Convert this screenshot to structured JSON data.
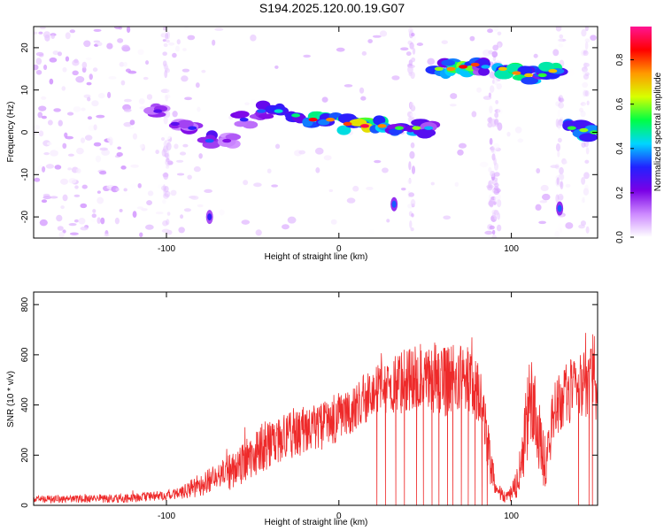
{
  "title": "S194.2025.120.00.19.G07",
  "colors": {
    "snr_line": "#ee2a2a",
    "colormap": [
      "#ffffff",
      "#cc88ff",
      "#7a00e6",
      "#2222ff",
      "#00d5ff",
      "#00ff44",
      "#d8ff00",
      "#ff9900",
      "#ff0000",
      "#ff1493"
    ]
  },
  "chart_data": [
    {
      "type": "heatmap",
      "name": "spectrogram",
      "xlabel": "Height of straight line (km)",
      "ylabel": "Frequency (Hz)",
      "xlim": [
        -177,
        150
      ],
      "ylim": [
        -25,
        25
      ],
      "x_ticks": [
        -100,
        0,
        100
      ],
      "x_tick_labels": [
        "-100",
        "0",
        "100"
      ],
      "y_ticks": [
        -20,
        -10,
        0,
        10,
        20
      ],
      "y_tick_labels": [
        "-20",
        "-10",
        "0",
        "10",
        "20"
      ],
      "colorbar": {
        "label": "Normalized spectral amplitude",
        "range": [
          0,
          0.95
        ],
        "ticks": [
          0,
          0.2,
          0.4,
          0.6,
          0.8
        ],
        "tick_labels": [
          "0.0",
          "0.2",
          "0.4",
          "0.6",
          "0.8"
        ]
      },
      "ridge": [
        {
          "x": -105,
          "y": 5,
          "amplitude": 0.25
        },
        {
          "x": -95,
          "y": 2,
          "amplitude": 0.25
        },
        {
          "x": -85,
          "y": 1,
          "amplitude": 0.3
        },
        {
          "x": -75,
          "y": -2,
          "amplitude": 0.35
        },
        {
          "x": -65,
          "y": -2,
          "amplitude": 0.2
        },
        {
          "x": -55,
          "y": 3,
          "amplitude": 0.3
        },
        {
          "x": -45,
          "y": 5,
          "amplitude": 0.35
        },
        {
          "x": -35,
          "y": 5,
          "amplitude": 0.45
        },
        {
          "x": -25,
          "y": 4,
          "amplitude": 0.5
        },
        {
          "x": -15,
          "y": 3,
          "amplitude": 0.85
        },
        {
          "x": -5,
          "y": 3,
          "amplitude": 0.75
        },
        {
          "x": 5,
          "y": 2,
          "amplitude": 0.8
        },
        {
          "x": 15,
          "y": 1.5,
          "amplitude": 0.9
        },
        {
          "x": 25,
          "y": 1.5,
          "amplitude": 0.75
        },
        {
          "x": 35,
          "y": 1,
          "amplitude": 0.55
        },
        {
          "x": 45,
          "y": 1,
          "amplitude": 0.6
        },
        {
          "x": 52,
          "y": 1,
          "amplitude": 0.4
        },
        {
          "x": 58,
          "y": 15,
          "amplitude": 0.6
        },
        {
          "x": 65,
          "y": 15,
          "amplitude": 0.75
        },
        {
          "x": 72,
          "y": 15.5,
          "amplitude": 0.85
        },
        {
          "x": 79,
          "y": 16,
          "amplitude": 0.8
        },
        {
          "x": 85,
          "y": 15.5,
          "amplitude": 0.4
        },
        {
          "x": 95,
          "y": 15,
          "amplitude": 0.7
        },
        {
          "x": 103,
          "y": 14,
          "amplitude": 0.75
        },
        {
          "x": 110,
          "y": 13.5,
          "amplitude": 0.7
        },
        {
          "x": 118,
          "y": 13.5,
          "amplitude": 0.55
        },
        {
          "x": 124,
          "y": 14.5,
          "amplitude": 0.7
        },
        {
          "x": 135,
          "y": 1,
          "amplitude": 0.55
        },
        {
          "x": 142,
          "y": 0.5,
          "amplitude": 0.6
        },
        {
          "x": 148,
          "y": 0,
          "amplitude": 0.55
        }
      ],
      "blobs": [
        {
          "x": -75,
          "y": -20,
          "amplitude": 0.3
        },
        {
          "x": 32,
          "y": -17,
          "amplitude": 0.35
        },
        {
          "x": 128,
          "y": -18,
          "amplitude": 0.35
        }
      ]
    },
    {
      "type": "line",
      "name": "snr",
      "xlabel": "Height of straight line (km)",
      "ylabel": "SNR (10 * v/v)",
      "xlim": [
        -177,
        150
      ],
      "ylim": [
        0,
        850
      ],
      "x_ticks": [
        -100,
        0,
        100
      ],
      "x_tick_labels": [
        "-100",
        "0",
        "100"
      ],
      "y_ticks": [
        0,
        200,
        400,
        600,
        800
      ],
      "y_tick_labels": [
        "0",
        "200",
        "400",
        "600",
        "800"
      ],
      "envelope": {
        "x": [
          -177,
          -150,
          -120,
          -100,
          -90,
          -80,
          -70,
          -60,
          -50,
          -40,
          -30,
          -20,
          -10,
          0,
          10,
          20,
          30,
          40,
          50,
          60,
          70,
          80,
          85,
          88,
          92,
          95,
          100,
          103,
          106,
          108,
          110,
          112,
          115,
          120,
          125,
          130,
          140,
          150
        ],
        "mean": [
          25,
          25,
          28,
          40,
          55,
          80,
          110,
          145,
          200,
          245,
          280,
          300,
          320,
          350,
          400,
          450,
          480,
          500,
          510,
          505,
          500,
          480,
          330,
          150,
          60,
          35,
          45,
          80,
          170,
          280,
          400,
          440,
          300,
          160,
          380,
          440,
          470,
          490
        ],
        "spread": [
          15,
          15,
          18,
          20,
          30,
          45,
          60,
          80,
          90,
          100,
          100,
          100,
          100,
          100,
          100,
          100,
          120,
          130,
          140,
          150,
          150,
          140,
          120,
          80,
          40,
          25,
          35,
          60,
          100,
          150,
          200,
          200,
          150,
          120,
          120,
          130,
          140,
          150
        ]
      },
      "dropouts_x": [
        22,
        27,
        33,
        38,
        45,
        49,
        54,
        58,
        63,
        66,
        71,
        75,
        79,
        83,
        86,
        139,
        145,
        147
      ]
    }
  ]
}
